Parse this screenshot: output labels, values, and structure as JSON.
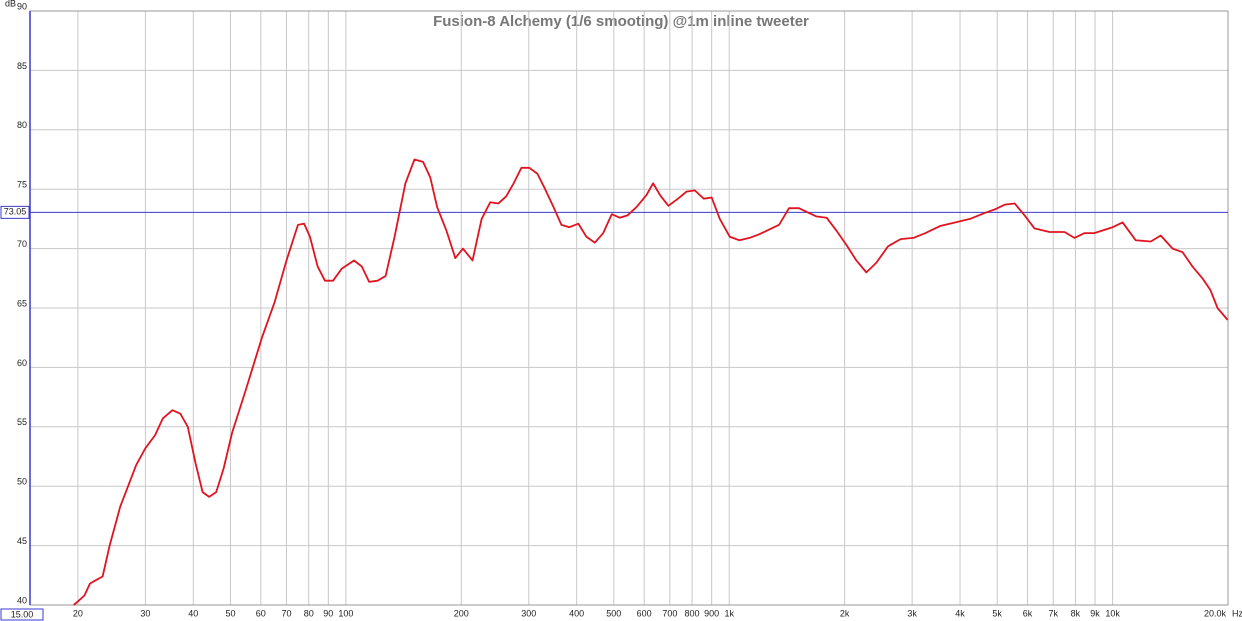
{
  "chart_data": {
    "type": "line",
    "title": "Fusion-8 Alchemy (1/6 smooting) @1m inline tweeter",
    "x_unit": "Hz",
    "y_unit": "dB",
    "log_x": true,
    "grid": true,
    "color": "#e01420",
    "xlim": [
      15,
      20000
    ],
    "ylim": [
      40,
      90
    ],
    "yticks": [
      40,
      45,
      50,
      55,
      60,
      65,
      70,
      75,
      80,
      85,
      90
    ],
    "xticks": [
      {
        "value": 15,
        "label": "15.00"
      },
      20,
      30,
      40,
      50,
      60,
      70,
      80,
      90,
      100,
      200,
      300,
      400,
      500,
      600,
      700,
      800,
      900,
      {
        "value": 1000,
        "label": "1k"
      },
      {
        "value": 2000,
        "label": "2k"
      },
      {
        "value": 3000,
        "label": "3k"
      },
      {
        "value": 4000,
        "label": "4k"
      },
      {
        "value": 5000,
        "label": "5k"
      },
      {
        "value": 6000,
        "label": "6k"
      },
      {
        "value": 7000,
        "label": "7k"
      },
      {
        "value": 8000,
        "label": "8k"
      },
      {
        "value": 9000,
        "label": "9k"
      },
      {
        "value": 10000,
        "label": "10k"
      },
      {
        "value": 20000,
        "label": "20.0k"
      }
    ],
    "reference_line": {
      "value": 73.05,
      "label": "73.05",
      "color": "#3a3ad0"
    },
    "x": [
      19.5,
      20,
      20.8,
      21.5,
      22.3,
      23.2,
      24.2,
      25.8,
      28.4,
      30,
      31.8,
      33.3,
      35.3,
      37,
      38.7,
      40.5,
      42.3,
      44,
      45.9,
      48,
      50.5,
      54.7,
      60.4,
      65.2,
      70,
      75,
      77.8,
      80.6,
      84.4,
      88.2,
      92.6,
      97.5,
      105,
      110,
      115,
      121,
      127,
      134,
      143,
      151,
      159,
      166,
      173,
      183,
      193,
      202,
      214,
      226,
      238,
      250,
      262,
      274,
      287,
      301,
      316,
      331,
      348,
      365,
      383,
      404,
      424,
      446,
      469,
      494,
      518,
      543,
      573,
      608,
      633,
      660,
      694,
      735,
      774,
      813,
      858,
      900,
      945,
      1003,
      1063,
      1129,
      1197,
      1271,
      1349,
      1432,
      1520,
      1613,
      1691,
      1795,
      1905,
      2022,
      2146,
      2278,
      2418,
      2597,
      2800,
      3022,
      3245,
      3548,
      3881,
      4245,
      4643,
      4930,
      5232,
      5553,
      5893,
      6255,
      6846,
      7492,
      7951,
      8439,
      8957,
      10000,
      10620,
      11490,
      12580,
      13350,
      14340,
      15220,
      16150,
      17150,
      18000,
      18780,
      19950
    ],
    "values": [
      40.0,
      40.3,
      40.8,
      41.8,
      42.1,
      42.4,
      45,
      48.3,
      51.8,
      53.2,
      54.3,
      55.7,
      56.4,
      56.1,
      55,
      52,
      49.5,
      49.1,
      49.5,
      51.5,
      54.5,
      58,
      62.5,
      65.5,
      69,
      72,
      72.1,
      71,
      68.5,
      67.3,
      67.3,
      68.3,
      69,
      68.5,
      67.2,
      67.3,
      67.7,
      71,
      75.5,
      77.5,
      77.3,
      76,
      73.5,
      71.5,
      69.2,
      70,
      69,
      72.5,
      73.9,
      73.8,
      74.4,
      75.5,
      76.8,
      76.8,
      76.3,
      75,
      73.5,
      72,
      71.8,
      72.1,
      71,
      70.5,
      71.3,
      72.9,
      72.6,
      72.8,
      73.5,
      74.5,
      75.5,
      74.5,
      73.6,
      74.2,
      74.8,
      74.9,
      74.2,
      74.3,
      72.5,
      71,
      70.7,
      70.9,
      71.2,
      71.6,
      72,
      73.4,
      73.4,
      73,
      72.7,
      72.6,
      71.5,
      70.3,
      69,
      68,
      68.8,
      70.2,
      70.8,
      70.9,
      71.3,
      71.9,
      72.2,
      72.5,
      73,
      73.3,
      73.7,
      73.8,
      72.8,
      71.7,
      71.4,
      71.4,
      70.9,
      71.3,
      71.3,
      71.8,
      72.2,
      70.7,
      70.6,
      71.1,
      70,
      69.7,
      68.5,
      67.5,
      66.5,
      65,
      64
    ]
  }
}
